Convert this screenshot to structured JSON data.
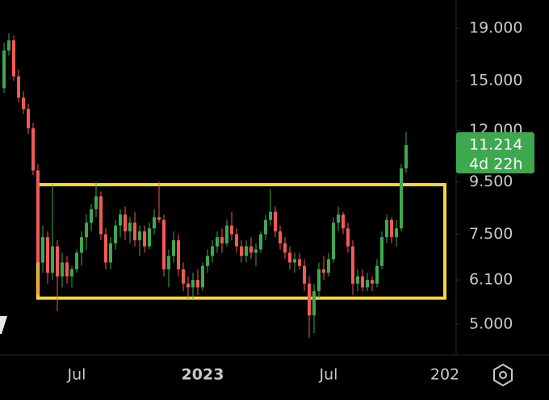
{
  "chart_data": {
    "type": "candlestick",
    "log_scale": true,
    "up_color": "#3ea84f",
    "down_color": "#f25a55",
    "ylim": [
      4.35,
      21.6
    ],
    "yticks": [
      {
        "value": 5,
        "label": "5.000"
      },
      {
        "value": 6.1,
        "label": "6.100"
      },
      {
        "value": 7.5,
        "label": "7.500"
      },
      {
        "value": 9.5,
        "label": "9.500"
      },
      {
        "value": 12,
        "label": "12.000"
      },
      {
        "value": 15,
        "label": "15.000"
      },
      {
        "value": 19,
        "label": "19.000"
      }
    ],
    "categories": [
      null,
      null,
      null,
      null,
      null,
      null,
      null,
      null,
      null,
      null,
      null,
      null,
      null,
      null,
      null,
      "Jul",
      null,
      null,
      null,
      null,
      null,
      null,
      null,
      null,
      null,
      null,
      null,
      null,
      null,
      null,
      null,
      null,
      null,
      null,
      null,
      null,
      null,
      null,
      null,
      null,
      null,
      "2023",
      null,
      null,
      null,
      null,
      null,
      null,
      null,
      null,
      null,
      null,
      null,
      null,
      null,
      null,
      null,
      null,
      null,
      null,
      null,
      null,
      null,
      null,
      null,
      null,
      null,
      "Jul",
      null,
      null,
      null,
      null,
      null,
      null,
      null,
      null,
      null,
      null,
      null,
      null,
      null,
      null,
      null,
      null,
      null,
      null,
      null,
      null,
      null,
      null,
      null,
      "202"
    ],
    "open": [
      14.5,
      17.2,
      18.0,
      15.3,
      13.9,
      13.2,
      12.1,
      10.0,
      6.6,
      7.4,
      6.3,
      7.1,
      6.2,
      6.6,
      6.2,
      6.4,
      6.9,
      7.4,
      7.9,
      8.4,
      8.9,
      7.5,
      6.6,
      7.2,
      7.8,
      8.2,
      7.6,
      7.9,
      7.3,
      7.6,
      7.1,
      7.7,
      8.1,
      8.0,
      6.4,
      6.8,
      7.3,
      6.4,
      6.0,
      5.9,
      6.1,
      5.9,
      6.5,
      6.8,
      7.1,
      7.4,
      7.2,
      7.8,
      7.5,
      7.1,
      6.8,
      7.1,
      6.9,
      7.0,
      7.5,
      8.0,
      8.3,
      7.6,
      7.2,
      6.9,
      6.6,
      6.7,
      6.5,
      6.0,
      5.2,
      5.8,
      6.4,
      6.3,
      6.7,
      7.9,
      8.2,
      7.7,
      7.1,
      6.0,
      6.2,
      5.9,
      6.1,
      6.0,
      6.5,
      7.4,
      8.0,
      7.4,
      7.7,
      10.1,
      null,
      null,
      null,
      null,
      null,
      null,
      null,
      null
    ],
    "high": [
      17.8,
      18.6,
      18.4,
      15.8,
      14.3,
      13.5,
      12.4,
      10.3,
      7.8,
      7.6,
      9.4,
      7.3,
      6.9,
      6.8,
      6.5,
      7.0,
      7.6,
      8.2,
      8.6,
      9.5,
      9.1,
      7.7,
      7.4,
      8.0,
      8.4,
      8.5,
      8.1,
      8.3,
      7.8,
      7.8,
      7.9,
      8.4,
      9.5,
      8.2,
      7.0,
      7.6,
      7.5,
      6.6,
      6.2,
      6.3,
      6.4,
      6.6,
      7.0,
      7.3,
      7.6,
      7.7,
      8.0,
      8.3,
      7.7,
      7.3,
      7.3,
      7.4,
      7.2,
      7.6,
      8.2,
      9.2,
      8.5,
      7.8,
      7.4,
      7.1,
      6.9,
      6.9,
      6.7,
      6.2,
      6.0,
      6.6,
      6.8,
      6.9,
      8.1,
      8.5,
      8.3,
      7.9,
      7.3,
      6.4,
      6.4,
      6.3,
      6.2,
      6.7,
      7.6,
      8.2,
      8.1,
      8.0,
      10.3,
      11.9,
      null,
      null,
      null,
      null,
      null,
      null,
      null,
      null
    ],
    "low": [
      14.2,
      16.8,
      15.0,
      13.6,
      12.9,
      11.8,
      9.8,
      5.7,
      6.3,
      6.0,
      6.1,
      5.3,
      5.9,
      6.0,
      5.9,
      6.3,
      6.5,
      7.0,
      7.6,
      8.1,
      7.3,
      6.4,
      6.4,
      7.0,
      7.4,
      7.3,
      7.2,
      7.1,
      6.8,
      6.9,
      7.0,
      7.5,
      7.9,
      6.2,
      5.9,
      6.6,
      6.2,
      5.8,
      5.6,
      5.6,
      5.7,
      5.8,
      6.3,
      6.6,
      6.9,
      6.9,
      7.1,
      7.3,
      6.9,
      6.6,
      6.6,
      6.7,
      6.5,
      6.9,
      7.3,
      7.8,
      7.4,
      7.0,
      6.7,
      6.4,
      6.3,
      6.4,
      5.8,
      4.7,
      4.8,
      5.6,
      6.1,
      6.2,
      6.6,
      7.6,
      7.5,
      6.9,
      5.7,
      5.8,
      5.8,
      5.8,
      5.8,
      5.9,
      6.4,
      7.2,
      7.2,
      7.1,
      7.6,
      9.9,
      null,
      null,
      null,
      null,
      null,
      null,
      null,
      null
    ],
    "close": [
      17.2,
      18.0,
      15.3,
      13.9,
      13.2,
      12.1,
      10.0,
      6.6,
      7.4,
      6.3,
      7.1,
      6.2,
      6.6,
      6.2,
      6.4,
      6.9,
      7.4,
      7.9,
      8.4,
      8.9,
      7.5,
      6.6,
      7.2,
      7.8,
      8.2,
      7.6,
      7.9,
      7.3,
      7.6,
      7.1,
      7.7,
      8.1,
      8.0,
      6.4,
      6.8,
      7.3,
      6.4,
      6.0,
      5.9,
      6.1,
      5.9,
      6.5,
      6.8,
      7.1,
      7.4,
      7.2,
      7.8,
      7.5,
      7.1,
      6.8,
      7.1,
      6.9,
      7.0,
      7.5,
      8.0,
      8.3,
      7.6,
      7.2,
      6.9,
      6.6,
      6.7,
      6.5,
      6.0,
      5.2,
      5.8,
      6.4,
      6.3,
      6.7,
      7.9,
      8.2,
      7.7,
      7.1,
      6.0,
      6.2,
      5.9,
      6.1,
      6.0,
      6.5,
      7.4,
      8.0,
      7.4,
      7.7,
      10.1,
      11.214,
      null,
      null,
      null,
      null,
      null,
      null,
      null,
      null
    ],
    "range_box": {
      "top": 9.38,
      "bottom": 5.62,
      "color": "#f7d43a"
    },
    "last_price": {
      "value": 11.214,
      "label": "11.214"
    },
    "countdown": "4d 22h"
  }
}
